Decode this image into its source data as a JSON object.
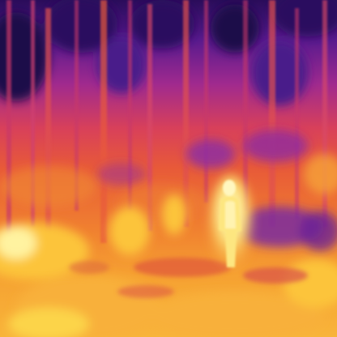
{
  "image": {
    "kind": "thermal-camera-frame",
    "palette": "ironbow",
    "colors": {
      "cold": "#1c0a4a",
      "cool": "#4a1a8a",
      "mid_cool": "#8a2aa6",
      "mid": "#c83a7a",
      "warm": "#e85a3a",
      "hot": "#f8902a",
      "hotter": "#fcc43a",
      "hottest": "#fff3a0"
    }
  }
}
